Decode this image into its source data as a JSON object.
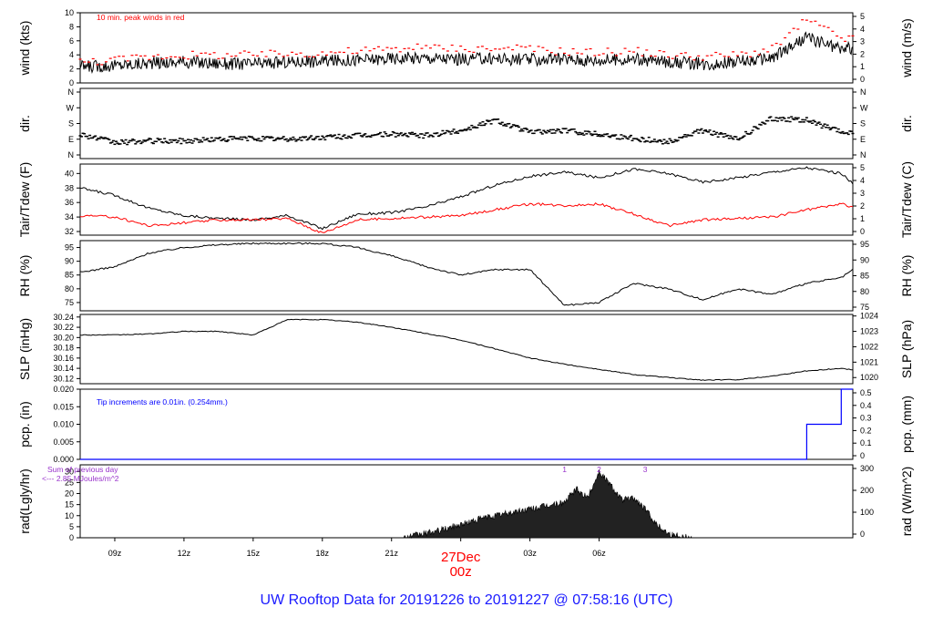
{
  "title": "UW Rooftop Data for 20191226  to  20191227 @ 07:58:16  (UTC)",
  "colors": {
    "primary": "#000000",
    "accent_red": "#ff0000",
    "tip_blue": "#0000ff",
    "rad_purple": "#9933cc",
    "title_blue": "#1a1aff"
  },
  "chart_data": [
    {
      "type": "line",
      "panel": "wind",
      "ylabel_left": "wind (kts)",
      "ylabel_right": "wind (m/s)",
      "ylim": [
        0,
        10
      ],
      "left_ticks": [
        "0",
        "2",
        "4",
        "6",
        "8",
        "10"
      ],
      "right_ticks": [
        "0",
        "1",
        "2",
        "3",
        "4",
        "5"
      ],
      "annotation": "10 min. peak winds in red",
      "x_hours": [
        -1.5,
        0,
        1.5,
        3,
        4.5,
        6,
        7.5,
        9,
        10.5,
        12,
        13.5,
        15,
        16.5,
        18,
        19.5,
        21,
        22.5,
        24,
        25.5,
        27,
        28.5,
        30,
        31.5,
        32
      ],
      "series": [
        {
          "values": [
            2.3,
            2.5,
            2.8,
            3.0,
            2.8,
            2.7,
            3.0,
            3.1,
            3.3,
            3.5,
            3.6,
            3.4,
            3.5,
            3.3,
            3.4,
            3.2,
            3.4,
            3.0,
            2.7,
            3.0,
            3.5,
            6.5,
            4.8,
            5.0
          ],
          "color": "#000000"
        },
        {
          "values": [
            3.0,
            3.3,
            3.8,
            4.0,
            4.0,
            4.0,
            4.2,
            4.3,
            4.6,
            4.8,
            5.0,
            5.0,
            4.9,
            4.8,
            4.5,
            4.4,
            4.6,
            4.0,
            3.8,
            4.0,
            4.8,
            9.0,
            6.5,
            6.2
          ],
          "color": "#ff0000",
          "style": "dashes"
        }
      ]
    },
    {
      "type": "scatter",
      "panel": "dir",
      "ylabel_left": "dir.",
      "ylabel_right": "dir.",
      "left_ticks": [
        "N",
        "W",
        "S",
        "E",
        "N"
      ],
      "right_ticks": [
        "N",
        "W",
        "S",
        "E",
        "N"
      ],
      "ylim": [
        0,
        360
      ],
      "x_hours": [
        -1.5,
        0,
        1.5,
        3,
        4.5,
        6,
        7.5,
        9,
        10.5,
        12,
        13.5,
        15,
        16.5,
        18,
        19.5,
        21,
        22.5,
        24,
        25.5,
        27,
        28.5,
        30,
        31.5,
        32
      ],
      "values": [
        120,
        70,
        80,
        80,
        90,
        95,
        90,
        100,
        110,
        120,
        110,
        140,
        200,
        130,
        140,
        120,
        95,
        75,
        140,
        90,
        210,
        200,
        130,
        130
      ]
    },
    {
      "type": "line",
      "panel": "temp",
      "ylabel_left": "Tair/Tdew (F)",
      "ylabel_right": "Tair/Tdew (C)",
      "ylim": [
        31.5,
        41.3
      ],
      "left_ticks": [
        "32",
        "34",
        "36",
        "38",
        "40"
      ],
      "right_ticks": [
        "0",
        "1",
        "2",
        "3",
        "4",
        "5"
      ],
      "x_hours": [
        -1.5,
        0,
        1.5,
        3,
        4.5,
        6,
        7.5,
        9,
        10.5,
        12,
        13.5,
        15,
        16.5,
        18,
        19.5,
        21,
        22.5,
        24,
        25.5,
        27,
        28.5,
        30,
        31.5,
        32
      ],
      "series": [
        {
          "name": "Tair",
          "values": [
            38.0,
            37.0,
            35.2,
            34.2,
            33.8,
            33.6,
            34.2,
            32.4,
            34.4,
            34.6,
            35.4,
            36.8,
            38.4,
            39.6,
            40.2,
            39.4,
            40.6,
            40.0,
            38.8,
            39.4,
            40.2,
            40.8,
            40.0,
            38.6
          ],
          "color": "#000000"
        },
        {
          "name": "Tdew",
          "values": [
            34.2,
            34.0,
            32.8,
            33.2,
            33.6,
            33.6,
            33.8,
            31.8,
            33.6,
            33.8,
            34.0,
            34.2,
            35.0,
            35.8,
            35.6,
            35.8,
            34.4,
            32.8,
            33.6,
            33.8,
            34.0,
            35.0,
            35.8,
            35.4
          ],
          "color": "#ff0000"
        }
      ]
    },
    {
      "type": "line",
      "panel": "rh",
      "ylabel_left": "RH (%)",
      "ylabel_right": "RH (%)",
      "ylim": [
        72,
        97.5
      ],
      "left_ticks": [
        "75",
        "80",
        "85",
        "90",
        "95"
      ],
      "right_ticks": [
        "75",
        "80",
        "85",
        "90",
        "95"
      ],
      "x_hours": [
        -1.5,
        0,
        1.5,
        3,
        4.5,
        6,
        7.5,
        9,
        10.5,
        12,
        13.5,
        15,
        16.5,
        18,
        19.5,
        21,
        22.5,
        24,
        25.5,
        27,
        28.5,
        30,
        31.5,
        32
      ],
      "values": [
        86,
        88,
        93,
        95,
        96,
        96.5,
        96.5,
        96.5,
        95,
        92,
        88,
        85,
        87,
        87,
        74,
        75,
        82,
        80,
        76,
        80,
        78,
        82,
        84,
        87
      ]
    },
    {
      "type": "line",
      "panel": "slp",
      "ylabel_left": "SLP (inHg)",
      "ylabel_right": "SLP (hPa)",
      "ylim": [
        30.11,
        30.245
      ],
      "left_ticks": [
        "30.12",
        "30.14",
        "30.16",
        "30.18",
        "30.20",
        "30.22",
        "30.24"
      ],
      "right_ticks": [
        "1020",
        "1021",
        "1022",
        "1023",
        "1024"
      ],
      "x_hours": [
        -1.5,
        0,
        1.5,
        3,
        4.5,
        6,
        7.5,
        9,
        10.5,
        12,
        13.5,
        15,
        16.5,
        18,
        19.5,
        21,
        22.5,
        24,
        25.5,
        27,
        28.5,
        30,
        31.5,
        32
      ],
      "values": [
        30.205,
        30.205,
        30.207,
        30.212,
        30.212,
        30.205,
        30.235,
        30.235,
        30.23,
        30.22,
        30.208,
        30.195,
        30.178,
        30.16,
        30.148,
        30.138,
        30.128,
        30.122,
        30.117,
        30.118,
        30.125,
        30.135,
        30.14,
        30.137
      ]
    },
    {
      "type": "line",
      "panel": "pcp",
      "ylabel_left": "pcp. (in)",
      "ylabel_right": "pcp. (mm)",
      "ylim": [
        0,
        0.02
      ],
      "left_ticks": [
        "0.000",
        "0.005",
        "0.010",
        "0.015",
        "0.020"
      ],
      "right_ticks": [
        "0",
        "0.1",
        "0.2",
        "0.3",
        "0.4",
        "0.5"
      ],
      "annotation": "Tip increments are 0.01in. (0.254mm.)",
      "x_hours": [
        -1.5,
        30,
        30,
        31.5,
        31.5,
        32
      ],
      "values": [
        0,
        0,
        0.01,
        0.01,
        0.02,
        0.02
      ]
    },
    {
      "type": "area",
      "panel": "rad",
      "ylabel_left": "rad(Lgly/hr)",
      "ylabel_right": "rad (W/m^2)",
      "ylim": [
        0,
        33
      ],
      "left_ticks": [
        "0",
        "5",
        "10",
        "15",
        "20",
        "25",
        "30"
      ],
      "right_ticks": [
        "0",
        "100",
        "200",
        "300"
      ],
      "annotation_lines": [
        "Sum of previous day",
        "<--- 2.85 MJoules/m^2"
      ],
      "markers": [
        "1",
        "2",
        "3"
      ],
      "x_hours": [
        12.5,
        14,
        15,
        16,
        17,
        18,
        19,
        19.5,
        20,
        20.5,
        21,
        21.5,
        22,
        22.5,
        23,
        23.5,
        24,
        24.5,
        25
      ],
      "values": [
        0,
        3,
        6,
        9,
        11,
        13,
        15,
        16,
        22,
        18,
        30,
        24,
        17,
        18,
        13,
        6,
        2,
        0.5,
        0
      ]
    }
  ],
  "x_axis": {
    "labels": [
      "09z",
      "12z",
      "15z",
      "18z",
      "21z",
      "27Dec",
      "03z",
      "06z"
    ],
    "day_label": "27Dec",
    "day_sub": "00z"
  }
}
